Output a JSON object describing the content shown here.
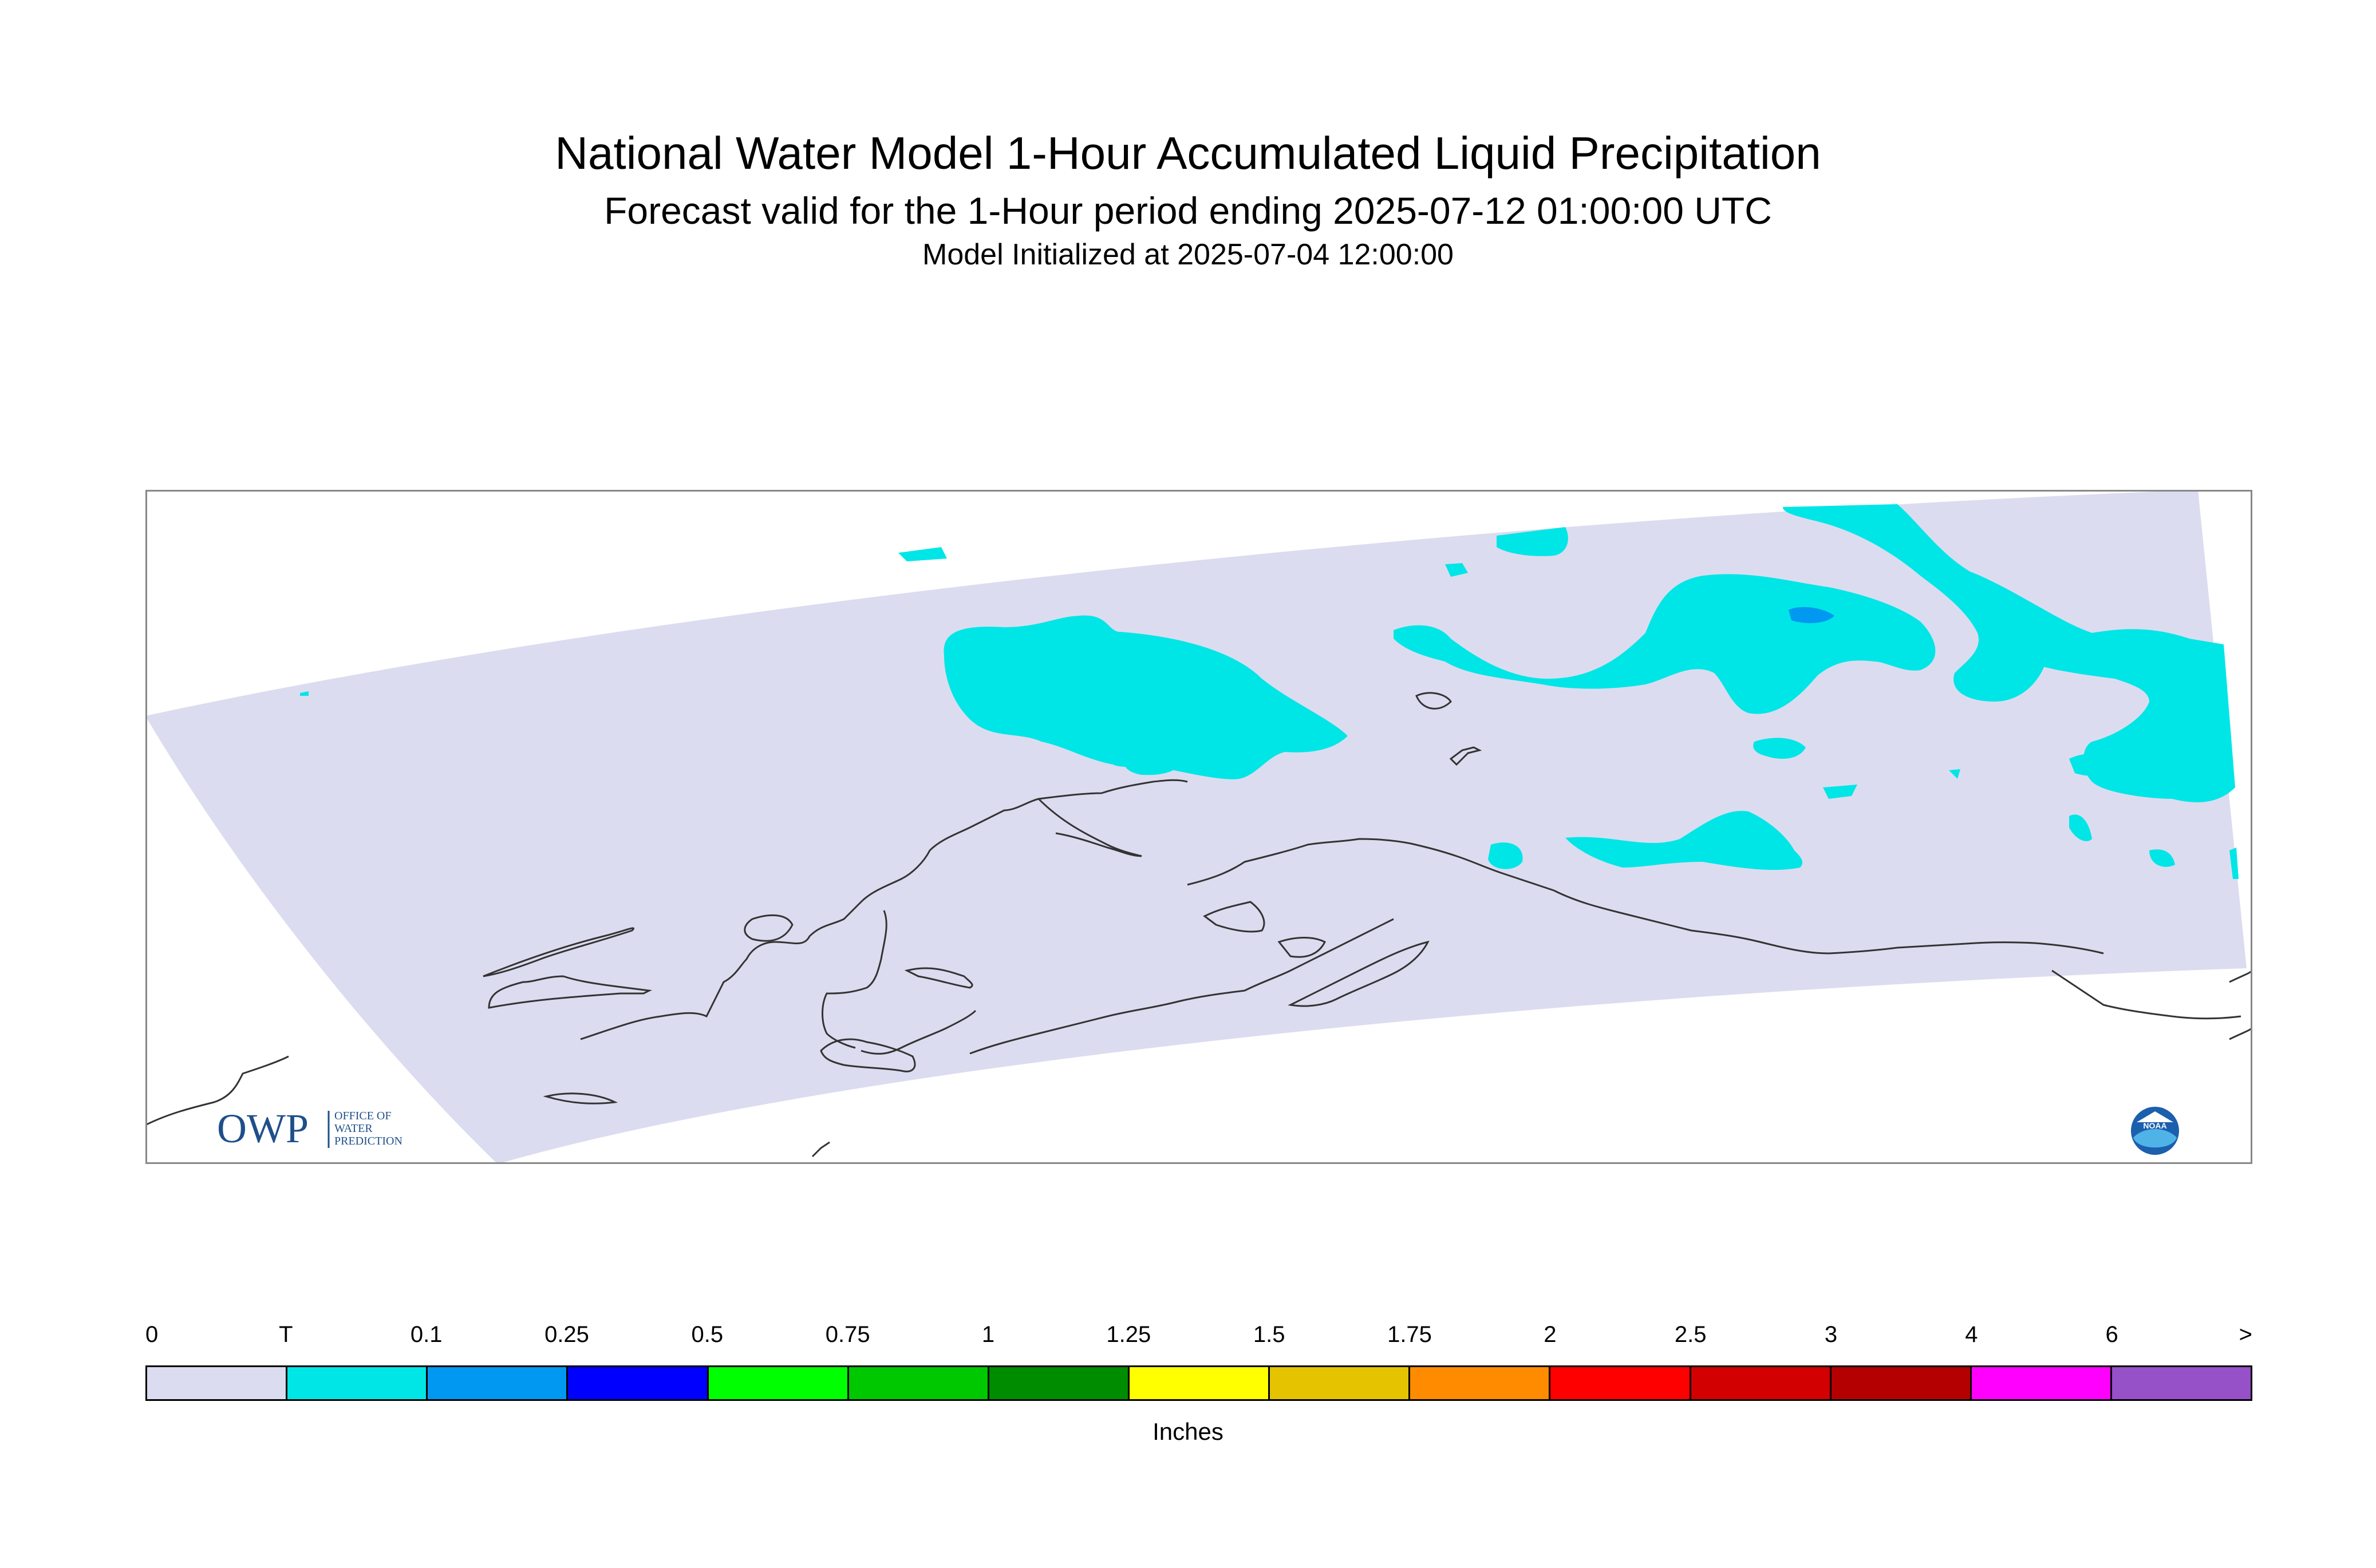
{
  "title": "National Water Model 1-Hour Accumulated Liquid Precipitation",
  "subtitle": "Forecast valid for the 1-Hour period ending 2025-07-12 01:00:00 UTC",
  "init": "Model Initialized at 2025-07-04 12:00:00",
  "logo_owp": {
    "mark": "OWP",
    "text": [
      "OFFICE OF",
      "WATER",
      "PREDICTION"
    ]
  },
  "logo_noaa": "NOAA",
  "colors": {
    "domain": "#dcdcf0",
    "trace": "#00e6e6",
    "light_blue": "#0098f0",
    "coast": "#333333",
    "owp": "#1f4f8a"
  },
  "legend": {
    "units": "Inches",
    "ticks": [
      "0",
      "T",
      "0.1",
      "0.25",
      "0.5",
      "0.75",
      "1",
      "1.25",
      "1.5",
      "1.75",
      "2",
      "2.5",
      "3",
      "4",
      "6",
      ">"
    ],
    "colors": [
      "#dcdcf0",
      "#00e6e6",
      "#0098f0",
      "#0000ff",
      "#00ff00",
      "#00c800",
      "#008c00",
      "#ffff00",
      "#e6c300",
      "#ff8c00",
      "#ff0000",
      "#d20000",
      "#b40000",
      "#ff00ff",
      "#9650c8"
    ]
  }
}
